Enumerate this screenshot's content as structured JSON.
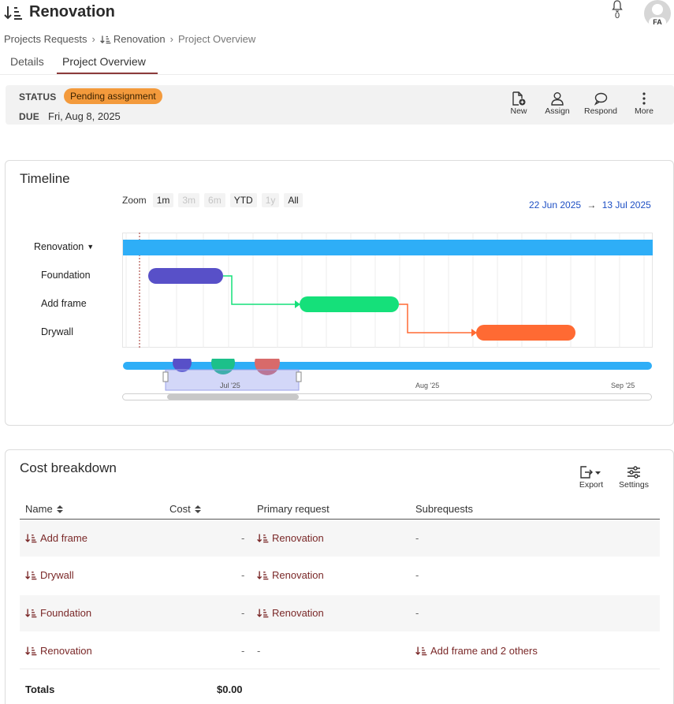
{
  "header": {
    "title": "Renovation",
    "notification_count": "0",
    "avatar_initials": "FA"
  },
  "breadcrumb": [
    "Projects Requests",
    "Renovation",
    "Project Overview"
  ],
  "tabs": [
    {
      "label": "Details",
      "active": false
    },
    {
      "label": "Project Overview",
      "active": true
    }
  ],
  "status": {
    "status_label": "STATUS",
    "status_value": "Pending assignment",
    "due_label": "DUE",
    "due_value": "Fri, Aug 8, 2025"
  },
  "actions": [
    {
      "label": "New",
      "icon": "file-plus-icon"
    },
    {
      "label": "Assign",
      "icon": "person-icon"
    },
    {
      "label": "Respond",
      "icon": "chat-bubble-icon"
    },
    {
      "label": "More",
      "icon": "kebab-icon"
    }
  ],
  "timeline": {
    "title": "Timeline",
    "zoom_label": "Zoom",
    "zoom_options": [
      {
        "label": "1m",
        "enabled": true
      },
      {
        "label": "3m",
        "enabled": false
      },
      {
        "label": "6m",
        "enabled": false
      },
      {
        "label": "YTD",
        "enabled": true
      },
      {
        "label": "1y",
        "enabled": false
      },
      {
        "label": "All",
        "enabled": true
      }
    ],
    "range_from": "22 Jun 2025",
    "range_to": "13 Jul 2025",
    "arrow": "→",
    "rows": [
      "Renovation",
      "Foundation",
      "Add frame",
      "Drywall"
    ],
    "navigator_labels": [
      "Jul '25",
      "Aug '25",
      "Sep '25"
    ],
    "colors": {
      "renovation": "#2eaef7",
      "foundation": "#5850c8",
      "add_frame": "#15e07a",
      "drywall": "#ff6a33"
    }
  },
  "cost": {
    "title": "Cost breakdown",
    "export_label": "Export",
    "settings_label": "Settings",
    "columns": {
      "name": "Name",
      "cost": "Cost",
      "primary": "Primary request",
      "sub": "Subrequests"
    },
    "rows": [
      {
        "name": "Add frame",
        "cost": "-",
        "primary": "Renovation",
        "sub": "-"
      },
      {
        "name": "Drywall",
        "cost": "-",
        "primary": "Renovation",
        "sub": "-"
      },
      {
        "name": "Foundation",
        "cost": "-",
        "primary": "Renovation",
        "sub": "-"
      },
      {
        "name": "Renovation",
        "cost": "-",
        "primary": "-",
        "sub": "Add frame and 2 others"
      }
    ],
    "totals_label": "Totals",
    "totals_value": "$0.00"
  }
}
